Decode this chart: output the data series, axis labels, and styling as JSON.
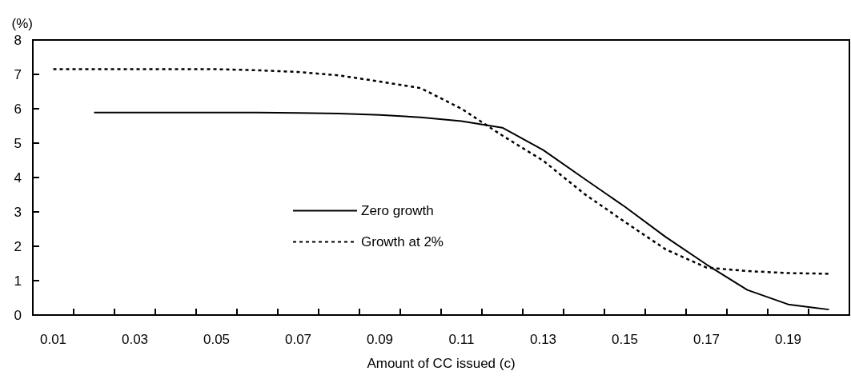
{
  "chart_data": {
    "type": "line",
    "xlabel": "Amount of CC issued (c)",
    "ylabel": "(%)",
    "categories": [
      "0.01",
      null,
      "0.03",
      null,
      "0.05",
      null,
      "0.07",
      null,
      "0.09",
      null,
      "0.11",
      null,
      "0.13",
      null,
      "0.15",
      null,
      "0.17",
      null,
      "0.19",
      null
    ],
    "ylim": [
      0,
      8
    ],
    "yticks": [
      0,
      1,
      2,
      3,
      4,
      5,
      6,
      7,
      8
    ],
    "grid": false,
    "legend": "center",
    "marker": "none",
    "series": [
      {
        "name": "Zero growth",
        "color": "#000000",
        "line_style": "solid",
        "values": [
          null,
          5.89,
          5.89,
          5.89,
          5.89,
          5.89,
          5.88,
          5.86,
          5.82,
          5.75,
          5.64,
          5.45,
          4.8,
          3.97,
          3.15,
          2.27,
          1.47,
          0.73,
          0.31,
          0.16
        ]
      },
      {
        "name": "Growth at 2%",
        "color": "#000000",
        "line_style": "dotted",
        "values": [
          7.15,
          7.15,
          7.15,
          7.15,
          7.15,
          7.12,
          7.07,
          6.97,
          6.79,
          6.6,
          6.0,
          5.22,
          4.49,
          3.53,
          2.71,
          1.91,
          1.38,
          1.28,
          1.22,
          1.2
        ]
      }
    ]
  }
}
